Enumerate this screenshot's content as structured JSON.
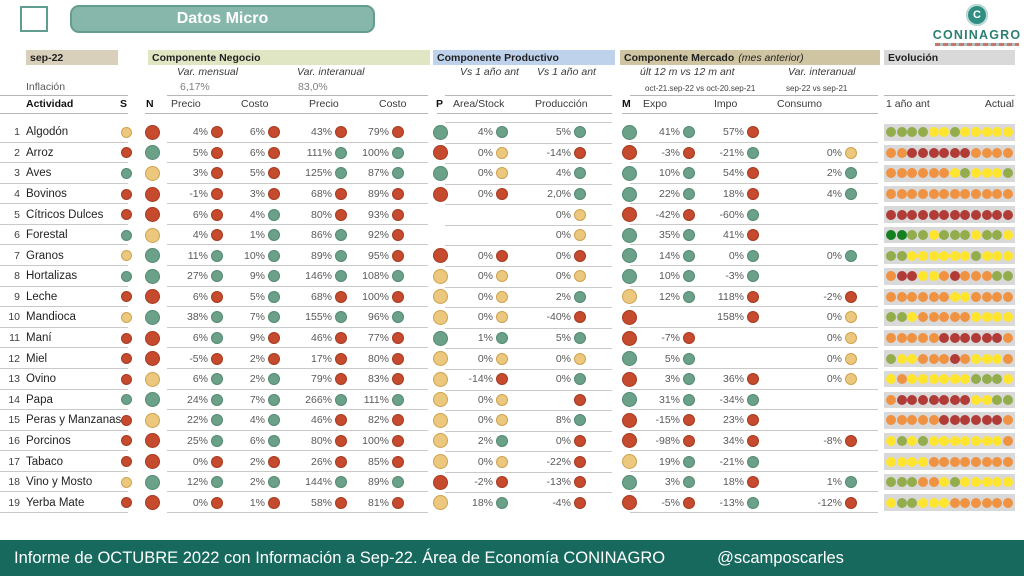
{
  "title": "Datos Micro",
  "logo": {
    "name": "CONINAGRO",
    "emblem_letter": "C"
  },
  "footer": {
    "text": "Informe de OCTUBRE 2022 con Información a Sep-22. Área de Economía CONINAGRO",
    "handle": "@scamposcarles"
  },
  "header": {
    "period": "sep-22",
    "inflacion_label": "Inflación",
    "actividad_label": "Actividad",
    "s_label": "S",
    "negocio": {
      "title": "Componente Negocio",
      "n_label": "N",
      "group_mensual": "Var. mensual",
      "group_interanual": "Var. interanual",
      "inflacion_mensual": "6,17%",
      "inflacion_interanual": "83,0%",
      "col_precio_m": "Precio",
      "col_costo_m": "Costo",
      "col_precio_i": "Precio",
      "col_costo_i": "Costo"
    },
    "productivo": {
      "title": "Componente Productivo",
      "p_label": "P",
      "group1": "Vs 1 año ant",
      "group2": "Vs 1 año ant",
      "col_area": "Area/Stock",
      "col_prod": "Producción"
    },
    "mercado": {
      "title": "Componente Mercado",
      "title_note": "(mes anterior)",
      "m_label": "M",
      "group1": "últ 12 m vs 12 m ant",
      "group2": "Var. interanual",
      "subnote1": "oct-21.sep-22 vs oct-20.sep-21",
      "subnote2": "sep-22 vs sep-21",
      "col_expo": "Expo",
      "col_impo": "Impo",
      "col_consumo": "Consumo"
    },
    "evolucion": {
      "title": "Evolución",
      "left": "1 año ant",
      "right": "Actual"
    }
  },
  "colors": {
    "status_red": "#c64a2d",
    "status_green": "#6ba189",
    "status_yellow": "#ebc87d",
    "evo_olive": "#93ad4d",
    "evo_yellow": "#ffe52e",
    "evo_orange": "#ef9242",
    "evo_brick": "#b13c37",
    "evo_darkgreen": "#15801f",
    "accent_teal": "#17695d"
  },
  "chart_data": {
    "type": "table",
    "columns": [
      "#",
      "Actividad",
      "S",
      "N",
      "Var.mensual Precio",
      "Var.mensual Costo",
      "Var.interanual Precio",
      "Var.interanual Costo",
      "P",
      "Area/Stock",
      "Producción",
      "M",
      "Expo",
      "Impo",
      "Consumo",
      "Evolución (12 meses, 1 año ant → Actual)"
    ],
    "dot_legend": {
      "r": "rojo/negativo",
      "g": "verde/positivo",
      "y": "amarillo/neutro"
    },
    "evo_legend": {
      "g": "verde oliva",
      "y": "amarillo",
      "o": "naranja",
      "r": "rojo ladrillo",
      "G": "verde oscuro"
    },
    "rows": [
      {
        "n": 1,
        "name": "Algodón",
        "s": "y",
        "nd": "r",
        "vmp": [
          "4%",
          "r"
        ],
        "vmc": [
          "6%",
          "r"
        ],
        "vip": [
          "43%",
          "r"
        ],
        "vic": [
          "79%",
          "r"
        ],
        "p": "g",
        "area": [
          "4%",
          "g"
        ],
        "prod": [
          "5%",
          "g"
        ],
        "m": "g",
        "expo": [
          "41%",
          "g"
        ],
        "impo": [
          "57%",
          "r"
        ],
        "cons": null,
        "evo": "ggggyygyyyyy"
      },
      {
        "n": 2,
        "name": "Arroz",
        "s": "r",
        "nd": "g",
        "vmp": [
          "5%",
          "r"
        ],
        "vmc": [
          "6%",
          "r"
        ],
        "vip": [
          "111%",
          "g"
        ],
        "vic": [
          "100%",
          "g"
        ],
        "p": "r",
        "area": [
          "0%",
          "y"
        ],
        "prod": [
          "-14%",
          "r"
        ],
        "m": "r",
        "expo": [
          "-3%",
          "r"
        ],
        "impo": [
          "-21%",
          "g"
        ],
        "cons": [
          "0%",
          "y"
        ],
        "evo": "oorrrrrroooo"
      },
      {
        "n": 3,
        "name": "Aves",
        "s": "g",
        "nd": "y",
        "vmp": [
          "3%",
          "r"
        ],
        "vmc": [
          "5%",
          "r"
        ],
        "vip": [
          "125%",
          "g"
        ],
        "vic": [
          "87%",
          "g"
        ],
        "p": "g",
        "area": [
          "0%",
          "y"
        ],
        "prod": [
          "4%",
          "g"
        ],
        "m": "g",
        "expo": [
          "10%",
          "g"
        ],
        "impo": [
          "54%",
          "r"
        ],
        "cons": [
          "2%",
          "g"
        ],
        "evo": "ooooooygyyyg"
      },
      {
        "n": 4,
        "name": "Bovinos",
        "s": "r",
        "nd": "r",
        "vmp": [
          "-1%",
          "r"
        ],
        "vmc": [
          "3%",
          "r"
        ],
        "vip": [
          "68%",
          "r"
        ],
        "vic": [
          "89%",
          "r"
        ],
        "p": "r",
        "area": [
          "0%",
          "r"
        ],
        "prod": [
          "2,0%",
          "g"
        ],
        "m": "g",
        "expo": [
          "22%",
          "g"
        ],
        "impo": [
          "18%",
          "r"
        ],
        "cons": [
          "4%",
          "g"
        ],
        "evo": "oooooooooooo"
      },
      {
        "n": 5,
        "name": "Cítricos Dulces",
        "s": "r",
        "nd": "r",
        "vmp": [
          "6%",
          "r"
        ],
        "vmc": [
          "4%",
          "g"
        ],
        "vip": [
          "80%",
          "r"
        ],
        "vic": [
          "93%",
          "r"
        ],
        "p": null,
        "area": null,
        "prod": [
          "0%",
          "y"
        ],
        "m": "r",
        "expo": [
          "-42%",
          "r"
        ],
        "impo": [
          "-60%",
          "g"
        ],
        "cons": null,
        "evo": "rrrrrrrrrrrr"
      },
      {
        "n": 6,
        "name": "Forestal",
        "s": "g",
        "nd": "y",
        "vmp": [
          "4%",
          "r"
        ],
        "vmc": [
          "1%",
          "g"
        ],
        "vip": [
          "86%",
          "g"
        ],
        "vic": [
          "92%",
          "r"
        ],
        "p": null,
        "area": null,
        "prod": [
          "0%",
          "y"
        ],
        "m": "g",
        "expo": [
          "35%",
          "g"
        ],
        "impo": [
          "41%",
          "r"
        ],
        "cons": null,
        "evo": "GGggygggyggy"
      },
      {
        "n": 7,
        "name": "Granos",
        "s": "y",
        "nd": "g",
        "vmp": [
          "11%",
          "g"
        ],
        "vmc": [
          "10%",
          "g"
        ],
        "vip": [
          "89%",
          "g"
        ],
        "vic": [
          "95%",
          "r"
        ],
        "p": "r",
        "area": [
          "0%",
          "r"
        ],
        "prod": [
          "0%",
          "r"
        ],
        "m": "g",
        "expo": [
          "14%",
          "g"
        ],
        "impo": [
          "0%",
          "g"
        ],
        "cons": [
          "0%",
          "g"
        ],
        "evo": "ggyyyyyygyyy"
      },
      {
        "n": 8,
        "name": "Hortalizas",
        "s": "g",
        "nd": "g",
        "vmp": [
          "27%",
          "g"
        ],
        "vmc": [
          "9%",
          "g"
        ],
        "vip": [
          "146%",
          "g"
        ],
        "vic": [
          "108%",
          "g"
        ],
        "p": "y",
        "area": [
          "0%",
          "y"
        ],
        "prod": [
          "0%",
          "y"
        ],
        "m": "g",
        "expo": [
          "10%",
          "g"
        ],
        "impo": [
          "-3%",
          "g"
        ],
        "cons": null,
        "evo": "orryyorooogg"
      },
      {
        "n": 9,
        "name": "Leche",
        "s": "r",
        "nd": "r",
        "vmp": [
          "6%",
          "r"
        ],
        "vmc": [
          "5%",
          "g"
        ],
        "vip": [
          "68%",
          "r"
        ],
        "vic": [
          "100%",
          "r"
        ],
        "p": "y",
        "area": [
          "0%",
          "y"
        ],
        "prod": [
          "2%",
          "g"
        ],
        "m": "y",
        "expo": [
          "12%",
          "g"
        ],
        "impo": [
          "118%",
          "r"
        ],
        "cons": [
          "-2%",
          "r"
        ],
        "evo": "ooooooyyoooo"
      },
      {
        "n": 10,
        "name": "Mandioca",
        "s": "y",
        "nd": "g",
        "vmp": [
          "38%",
          "g"
        ],
        "vmc": [
          "7%",
          "g"
        ],
        "vip": [
          "155%",
          "g"
        ],
        "vic": [
          "96%",
          "g"
        ],
        "p": "y",
        "area": [
          "0%",
          "y"
        ],
        "prod": [
          "-40%",
          "r"
        ],
        "m": "r",
        "expo": null,
        "impo": [
          "158%",
          "r"
        ],
        "cons": [
          "0%",
          "y"
        ],
        "evo": "ggyoooooyyyy"
      },
      {
        "n": 11,
        "name": "Maní",
        "s": "r",
        "nd": "r",
        "vmp": [
          "6%",
          "g"
        ],
        "vmc": [
          "9%",
          "r"
        ],
        "vip": [
          "46%",
          "r"
        ],
        "vic": [
          "77%",
          "r"
        ],
        "p": "g",
        "area": [
          "1%",
          "g"
        ],
        "prod": [
          "5%",
          "g"
        ],
        "m": "r",
        "expo": [
          "-7%",
          "r"
        ],
        "impo": null,
        "cons": [
          "0%",
          "y"
        ],
        "evo": "ooooorrrrrro"
      },
      {
        "n": 12,
        "name": "Miel",
        "s": "r",
        "nd": "r",
        "vmp": [
          "-5%",
          "r"
        ],
        "vmc": [
          "2%",
          "r"
        ],
        "vip": [
          "17%",
          "r"
        ],
        "vic": [
          "80%",
          "r"
        ],
        "p": "y",
        "area": [
          "0%",
          "y"
        ],
        "prod": [
          "0%",
          "y"
        ],
        "m": "g",
        "expo": [
          "5%",
          "g"
        ],
        "impo": null,
        "cons": [
          "0%",
          "y"
        ],
        "evo": "gyyoooroyyyo"
      },
      {
        "n": 13,
        "name": "Ovino",
        "s": "r",
        "nd": "y",
        "vmp": [
          "6%",
          "g"
        ],
        "vmc": [
          "2%",
          "g"
        ],
        "vip": [
          "79%",
          "r"
        ],
        "vic": [
          "83%",
          "r"
        ],
        "p": "y",
        "area": [
          "-14%",
          "r"
        ],
        "prod": [
          "0%",
          "g"
        ],
        "m": "r",
        "expo": [
          "3%",
          "g"
        ],
        "impo": [
          "36%",
          "r"
        ],
        "cons": [
          "0%",
          "y"
        ],
        "evo": "yoyyyyyygggy"
      },
      {
        "n": 14,
        "name": "Papa",
        "s": "g",
        "nd": "g",
        "vmp": [
          "24%",
          "g"
        ],
        "vmc": [
          "7%",
          "g"
        ],
        "vip": [
          "266%",
          "g"
        ],
        "vic": [
          "111%",
          "g"
        ],
        "p": "y",
        "area": [
          "0%",
          "y"
        ],
        "prod": [
          "",
          "r"
        ],
        "m": "g",
        "expo": [
          "31%",
          "g"
        ],
        "impo": [
          "-34%",
          "g"
        ],
        "cons": null,
        "evo": "orrrrrrryygg"
      },
      {
        "n": 15,
        "name": "Peras y Manzanas",
        "s": "r",
        "nd": "y",
        "vmp": [
          "22%",
          "g"
        ],
        "vmc": [
          "4%",
          "g"
        ],
        "vip": [
          "46%",
          "r"
        ],
        "vic": [
          "82%",
          "r"
        ],
        "p": "y",
        "area": [
          "0%",
          "y"
        ],
        "prod": [
          "8%",
          "g"
        ],
        "m": "r",
        "expo": [
          "-15%",
          "r"
        ],
        "impo": [
          "23%",
          "r"
        ],
        "cons": null,
        "evo": "ooooorrrrrro"
      },
      {
        "n": 16,
        "name": "Porcinos",
        "s": "r",
        "nd": "r",
        "vmp": [
          "25%",
          "g"
        ],
        "vmc": [
          "6%",
          "g"
        ],
        "vip": [
          "80%",
          "r"
        ],
        "vic": [
          "100%",
          "r"
        ],
        "p": "y",
        "area": [
          "2%",
          "g"
        ],
        "prod": [
          "0%",
          "r"
        ],
        "m": "r",
        "expo": [
          "-98%",
          "r"
        ],
        "impo": [
          "34%",
          "r"
        ],
        "cons": [
          "-8%",
          "r"
        ],
        "evo": "ygygyyyyyyyo"
      },
      {
        "n": 17,
        "name": "Tabaco",
        "s": "r",
        "nd": "r",
        "vmp": [
          "0%",
          "r"
        ],
        "vmc": [
          "2%",
          "r"
        ],
        "vip": [
          "26%",
          "r"
        ],
        "vic": [
          "85%",
          "r"
        ],
        "p": "y",
        "area": [
          "0%",
          "y"
        ],
        "prod": [
          "-22%",
          "r"
        ],
        "m": "y",
        "expo": [
          "19%",
          "g"
        ],
        "impo": [
          "-21%",
          "g"
        ],
        "cons": null,
        "evo": "yyyyoooooooo"
      },
      {
        "n": 18,
        "name": "Vino y Mosto",
        "s": "y",
        "nd": "g",
        "vmp": [
          "12%",
          "g"
        ],
        "vmc": [
          "2%",
          "g"
        ],
        "vip": [
          "144%",
          "g"
        ],
        "vic": [
          "89%",
          "g"
        ],
        "p": "r",
        "area": [
          "-2%",
          "r"
        ],
        "prod": [
          "-13%",
          "r"
        ],
        "m": "g",
        "expo": [
          "3%",
          "g"
        ],
        "impo": [
          "18%",
          "r"
        ],
        "cons": [
          "1%",
          "g"
        ],
        "evo": "gggooygyyyyy"
      },
      {
        "n": 19,
        "name": "Yerba Mate",
        "s": "r",
        "nd": "r",
        "vmp": [
          "0%",
          "r"
        ],
        "vmc": [
          "1%",
          "r"
        ],
        "vip": [
          "58%",
          "r"
        ],
        "vic": [
          "81%",
          "r"
        ],
        "p": "y",
        "area": [
          "18%",
          "g"
        ],
        "prod": [
          "-4%",
          "r"
        ],
        "m": "r",
        "expo": [
          "-5%",
          "r"
        ],
        "impo": [
          "-13%",
          "g"
        ],
        "cons": [
          "-12%",
          "r"
        ],
        "evo": "yggyyyoooooo"
      }
    ]
  }
}
